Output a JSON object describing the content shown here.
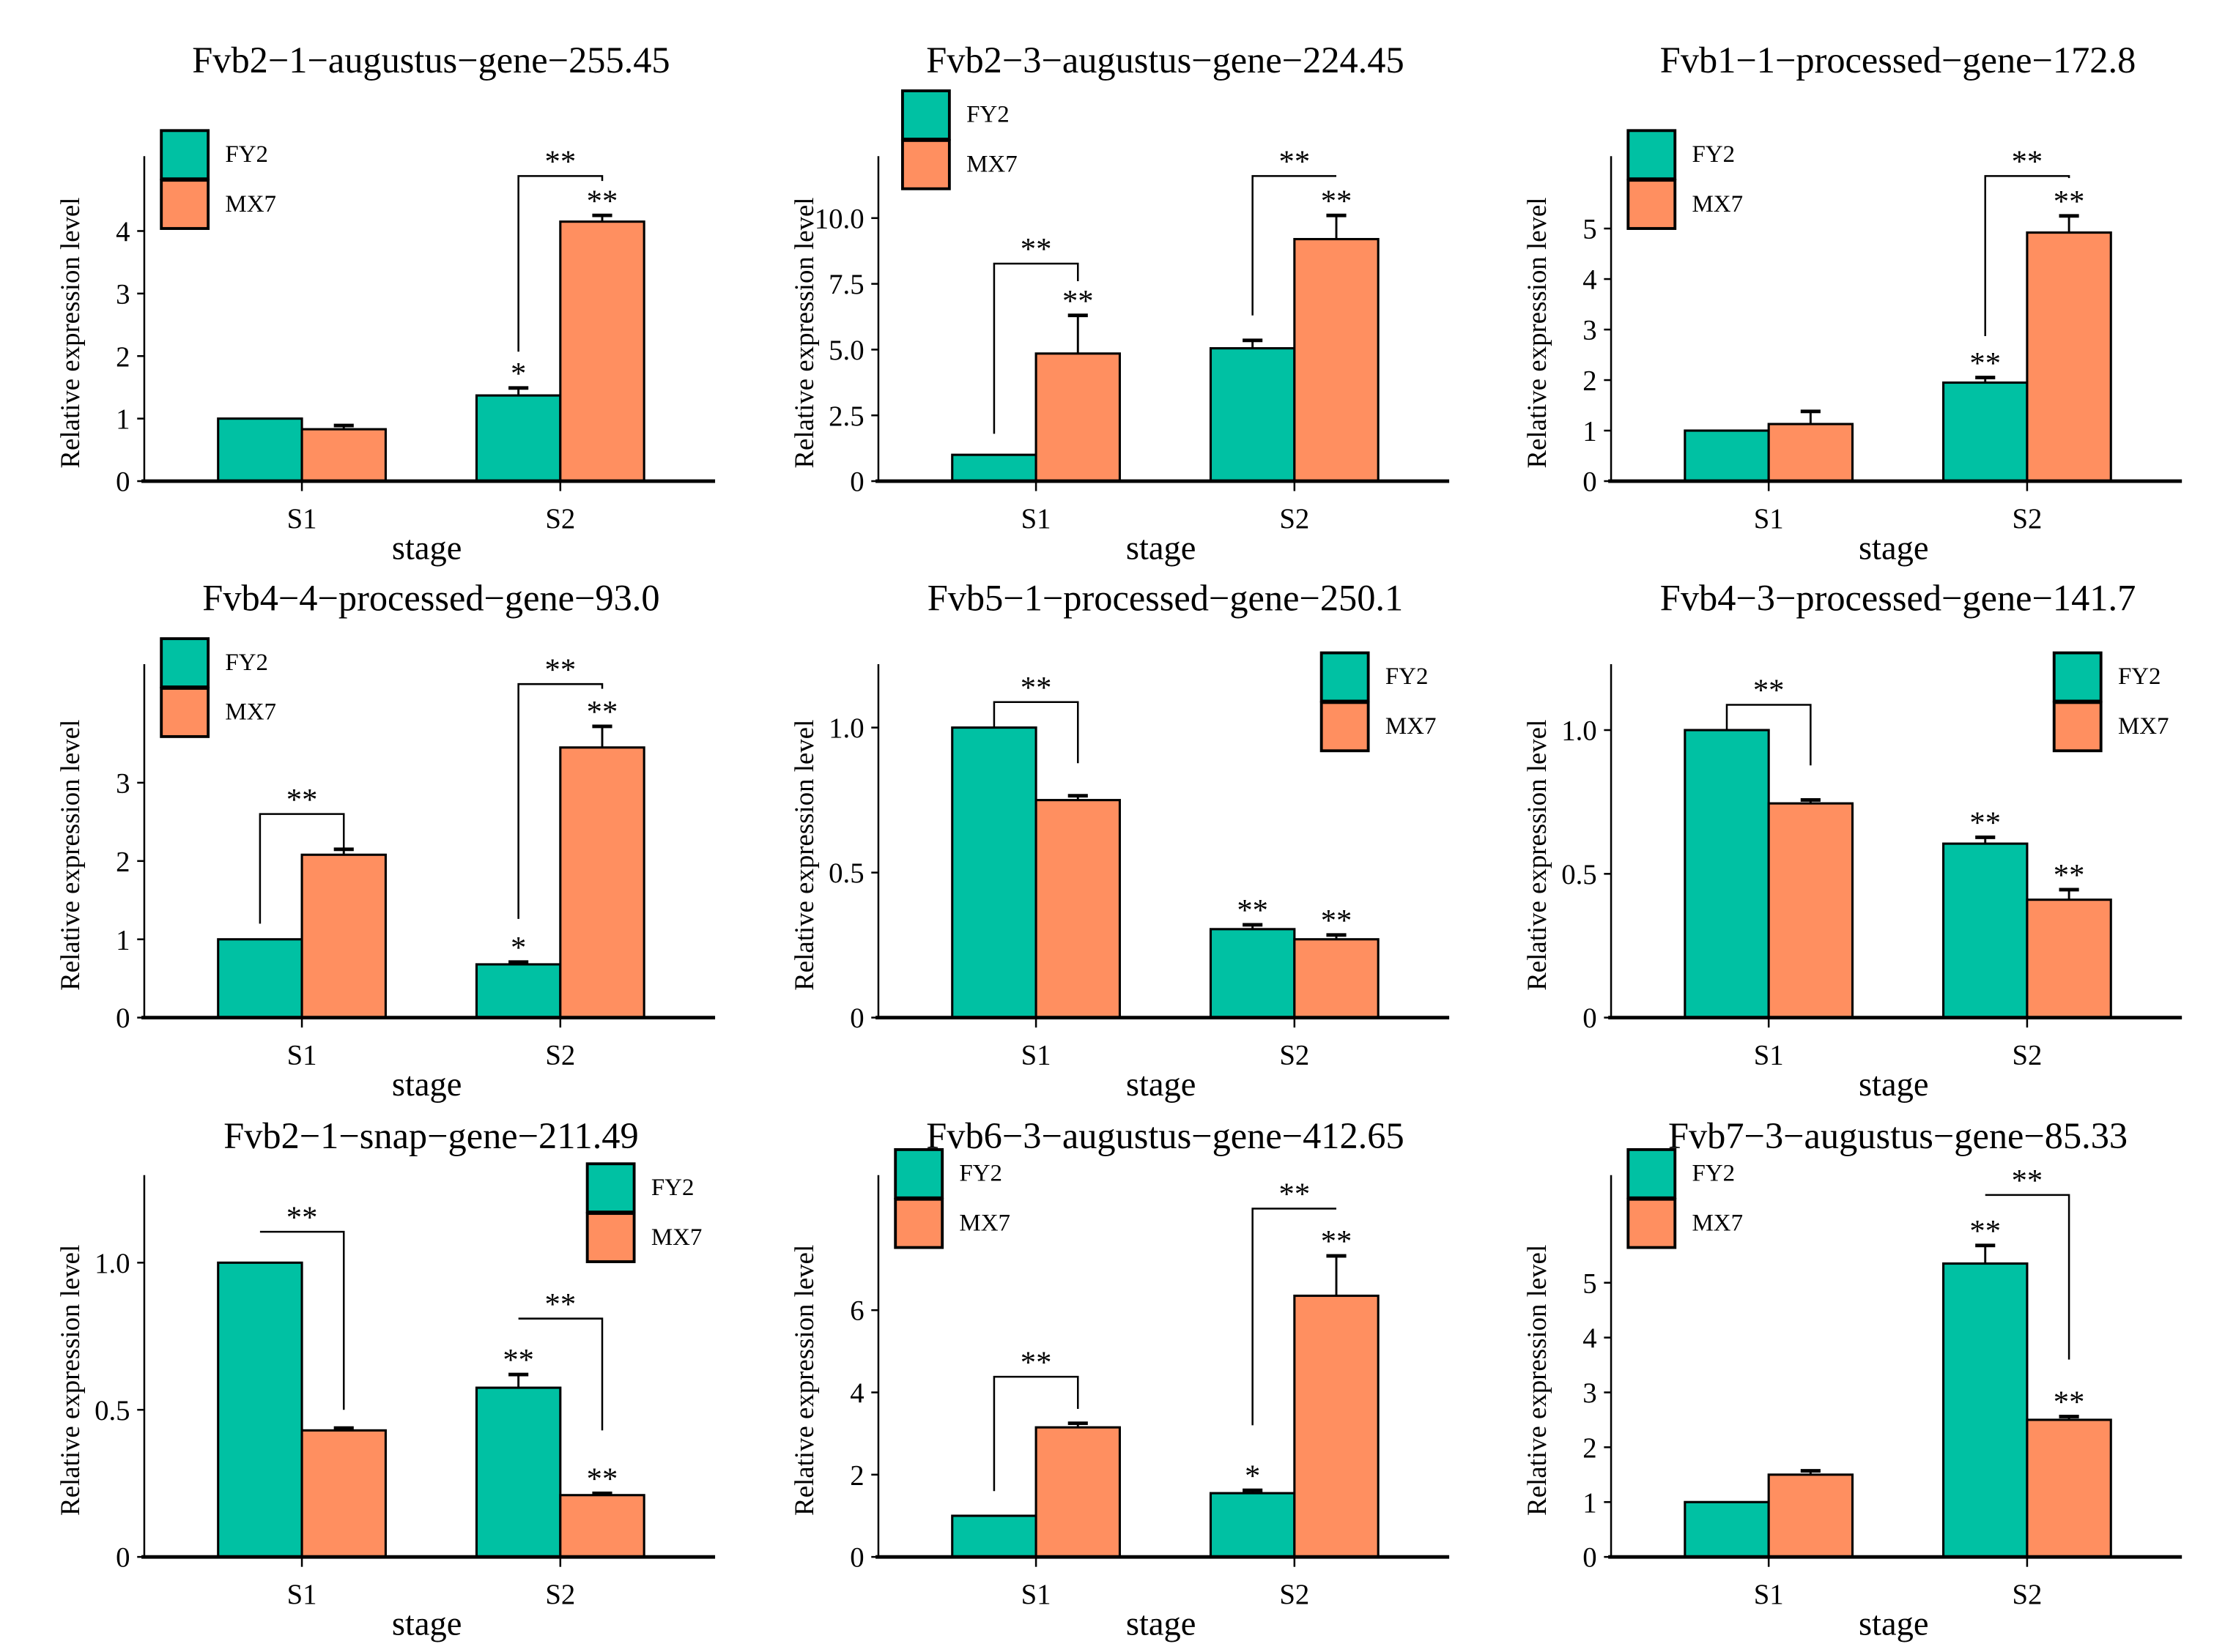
{
  "colors": {
    "FY2": "#00C1A3",
    "MX7": "#FF8F60",
    "outline": "#000000"
  },
  "chart_data": [
    {
      "type": "bar",
      "title": "Fvb2−1−augustus−gene−255.45",
      "xlabel": "stage",
      "ylabel": "Relative expression level",
      "categories": [
        "S1",
        "S2"
      ],
      "legend": [
        "FY2",
        "MX7"
      ],
      "legend_position": "top-left",
      "ylim": [
        0,
        4.5
      ],
      "yticks": [
        0,
        1,
        2,
        3,
        4
      ],
      "ytick_labels": [
        "0",
        "1",
        "2",
        "3",
        "4"
      ],
      "series": [
        {
          "name": "FY2",
          "values": [
            1.0,
            1.37
          ],
          "errors": [
            0,
            0.12
          ],
          "sig": [
            "",
            "*"
          ]
        },
        {
          "name": "MX7",
          "values": [
            0.83,
            4.15
          ],
          "errors": [
            0.06,
            0.1
          ],
          "sig": [
            "",
            "**"
          ]
        }
      ],
      "brackets": [
        {
          "category": "S2",
          "top": 4.88,
          "left_end": 2.07,
          "right_end": 4.8,
          "label": "**"
        }
      ]
    },
    {
      "type": "bar",
      "title": "Fvb2−3−augustus−gene−224.45",
      "xlabel": "stage",
      "ylabel": "Relative expression level",
      "categories": [
        "S1",
        "S2"
      ],
      "legend": [
        "FY2",
        "MX7"
      ],
      "legend_position": "top-left-high",
      "ylim": [
        0,
        11.2
      ],
      "yticks": [
        0,
        2.5,
        5,
        7.5,
        10
      ],
      "ytick_labels": [
        "0",
        "2.5",
        "5.0",
        "7.5",
        "10.0"
      ],
      "series": [
        {
          "name": "FY2",
          "values": [
            1.0,
            5.05
          ],
          "errors": [
            0,
            0.3
          ],
          "sig": [
            "",
            ""
          ]
        },
        {
          "name": "MX7",
          "values": [
            4.85,
            9.2
          ],
          "errors": [
            1.45,
            0.9
          ],
          "sig": [
            "**",
            "**"
          ]
        }
      ],
      "brackets": [
        {
          "category": "S1",
          "top": 8.27,
          "left_end": 1.8,
          "right_end": 7.6,
          "label": "**"
        },
        {
          "category": "S2",
          "top": 11.6,
          "left_end": 6.3,
          "right_end": 11.6,
          "label": "**"
        }
      ]
    },
    {
      "type": "bar",
      "title": "Fvb1−1−processed−gene−172.8",
      "xlabel": "stage",
      "ylabel": "Relative expression level",
      "categories": [
        "S1",
        "S2"
      ],
      "legend": [
        "FY2",
        "MX7"
      ],
      "legend_position": "top-left",
      "ylim": [
        0,
        5.6
      ],
      "yticks": [
        0,
        1,
        2,
        3,
        4,
        5
      ],
      "ytick_labels": [
        "0",
        "1",
        "2",
        "3",
        "4",
        "5"
      ],
      "series": [
        {
          "name": "FY2",
          "values": [
            1.0,
            1.95
          ],
          "errors": [
            0,
            0.1
          ],
          "sig": [
            "",
            "**"
          ]
        },
        {
          "name": "MX7",
          "values": [
            1.13,
            4.92
          ],
          "errors": [
            0.25,
            0.33
          ],
          "sig": [
            "",
            "**"
          ]
        }
      ],
      "brackets": [
        {
          "category": "S2",
          "top": 6.04,
          "left_end": 2.87,
          "right_end": 6.0,
          "label": "**"
        }
      ]
    },
    {
      "type": "bar",
      "title": "Fvb4−4−processed−gene−93.0",
      "xlabel": "stage",
      "ylabel": "Relative expression level",
      "categories": [
        "S1",
        "S2"
      ],
      "legend": [
        "FY2",
        "MX7"
      ],
      "legend_position": "top-left",
      "ylim": [
        0,
        4.2
      ],
      "yticks": [
        0,
        1,
        2,
        3
      ],
      "ytick_labels": [
        "0",
        "1",
        "2",
        "3"
      ],
      "series": [
        {
          "name": "FY2",
          "values": [
            1.0,
            0.68
          ],
          "errors": [
            0,
            0.03
          ],
          "sig": [
            "",
            "*"
          ]
        },
        {
          "name": "MX7",
          "values": [
            2.08,
            3.45
          ],
          "errors": [
            0.07,
            0.27
          ],
          "sig": [
            "",
            "**"
          ]
        }
      ],
      "brackets": [
        {
          "category": "S1",
          "top": 2.6,
          "left_end": 1.2,
          "right_end": 2.16,
          "label": "**"
        },
        {
          "category": "S2",
          "top": 4.26,
          "left_end": 1.26,
          "right_end": 4.2,
          "label": "**"
        }
      ]
    },
    {
      "type": "bar",
      "title": "Fvb5−1−processed−gene−250.1",
      "xlabel": "stage",
      "ylabel": "Relative expression level",
      "categories": [
        "S1",
        "S2"
      ],
      "legend": [
        "FY2",
        "MX7"
      ],
      "legend_position": "top-right",
      "ylim": [
        0,
        1.15
      ],
      "yticks": [
        0,
        0.5,
        1
      ],
      "ytick_labels": [
        "0",
        "0.5",
        "1.0"
      ],
      "series": [
        {
          "name": "FY2",
          "values": [
            1.0,
            0.305
          ],
          "errors": [
            0,
            0.015
          ],
          "sig": [
            "",
            "**"
          ]
        },
        {
          "name": "MX7",
          "values": [
            0.75,
            0.27
          ],
          "errors": [
            0.015,
            0.015
          ],
          "sig": [
            "",
            "**"
          ]
        }
      ],
      "brackets": [
        {
          "category": "S1",
          "top": 1.088,
          "left_end": 1.0,
          "right_end": 0.877,
          "label": "**"
        }
      ]
    },
    {
      "type": "bar",
      "title": "Fvb4−3−processed−gene−141.7",
      "xlabel": "stage",
      "ylabel": "Relative expression level",
      "categories": [
        "S1",
        "S2"
      ],
      "legend": [
        "FY2",
        "MX7"
      ],
      "legend_position": "top-right",
      "ylim": [
        0,
        1.16
      ],
      "yticks": [
        0,
        0.5,
        1
      ],
      "ytick_labels": [
        "0",
        "0.5",
        "1.0"
      ],
      "series": [
        {
          "name": "FY2",
          "values": [
            1.0,
            0.605
          ],
          "errors": [
            0,
            0.022
          ],
          "sig": [
            "",
            "**"
          ]
        },
        {
          "name": "MX7",
          "values": [
            0.745,
            0.41
          ],
          "errors": [
            0.012,
            0.035
          ],
          "sig": [
            "",
            "**"
          ]
        }
      ],
      "brackets": [
        {
          "category": "S1",
          "top": 1.088,
          "left_end": 1.0,
          "right_end": 0.877,
          "label": "**"
        }
      ]
    },
    {
      "type": "bar",
      "title": "Fvb2−1−snap−gene−211.49",
      "xlabel": "stage",
      "ylabel": "Relative expression level",
      "categories": [
        "S1",
        "S2"
      ],
      "legend": [
        "FY2",
        "MX7"
      ],
      "legend_position": "top-right",
      "ylim": [
        0,
        1.23
      ],
      "yticks": [
        0,
        0.5,
        1
      ],
      "ytick_labels": [
        "0",
        "0.5",
        "1.0"
      ],
      "series": [
        {
          "name": "FY2",
          "values": [
            1.0,
            0.575
          ],
          "errors": [
            0,
            0.045
          ],
          "sig": [
            "",
            "**"
          ]
        },
        {
          "name": "MX7",
          "values": [
            0.43,
            0.21
          ],
          "errors": [
            0.008,
            0.006
          ],
          "sig": [
            "",
            "**"
          ]
        }
      ],
      "brackets": [
        {
          "category": "S1",
          "top": 1.105,
          "left_end": 1.105,
          "right_end": 0.5,
          "label": "**"
        },
        {
          "category": "S2",
          "top": 0.81,
          "left_end": 0.81,
          "right_end": 0.43,
          "label": "**"
        }
      ]
    },
    {
      "type": "bar",
      "title": "Fvb6−3−augustus−gene−412.65",
      "xlabel": "stage",
      "ylabel": "Relative expression level",
      "categories": [
        "S1",
        "S2"
      ],
      "legend": [
        "FY2",
        "MX7"
      ],
      "legend_position": "top-left",
      "ylim": [
        0,
        8.8
      ],
      "yticks": [
        0,
        2,
        4,
        6
      ],
      "ytick_labels": [
        "0",
        "2",
        "4",
        "6"
      ],
      "series": [
        {
          "name": "FY2",
          "values": [
            1.0,
            1.55
          ],
          "errors": [
            0,
            0.07
          ],
          "sig": [
            "",
            "*"
          ]
        },
        {
          "name": "MX7",
          "values": [
            3.15,
            6.35
          ],
          "errors": [
            0.1,
            0.97
          ],
          "sig": [
            "",
            "**"
          ]
        }
      ],
      "brackets": [
        {
          "category": "S1",
          "top": 4.38,
          "left_end": 1.6,
          "right_end": 3.6,
          "label": "**"
        },
        {
          "category": "S2",
          "top": 8.47,
          "left_end": 3.2,
          "right_end": 8.47,
          "label": "**"
        }
      ]
    },
    {
      "type": "bar",
      "title": "Fvb7−3−augustus−gene−85.33",
      "xlabel": "stage",
      "ylabel": "Relative expression level",
      "categories": [
        "S1",
        "S2"
      ],
      "legend": [
        "FY2",
        "MX7"
      ],
      "legend_position": "top-left",
      "ylim": [
        0,
        6.5
      ],
      "yticks": [
        0,
        1,
        2,
        3,
        4,
        5
      ],
      "ytick_labels": [
        "0",
        "1",
        "2",
        "3",
        "4",
        "5"
      ],
      "series": [
        {
          "name": "FY2",
          "values": [
            1.0,
            5.35
          ],
          "errors": [
            0,
            0.33
          ],
          "sig": [
            "",
            "**"
          ]
        },
        {
          "name": "MX7",
          "values": [
            1.5,
            2.5
          ],
          "errors": [
            0.07,
            0.06
          ],
          "sig": [
            "",
            "**"
          ]
        }
      ],
      "brackets": [
        {
          "category": "S2",
          "top": 6.6,
          "left_end": 6.6,
          "right_end": 3.6,
          "label": "**"
        }
      ]
    }
  ]
}
